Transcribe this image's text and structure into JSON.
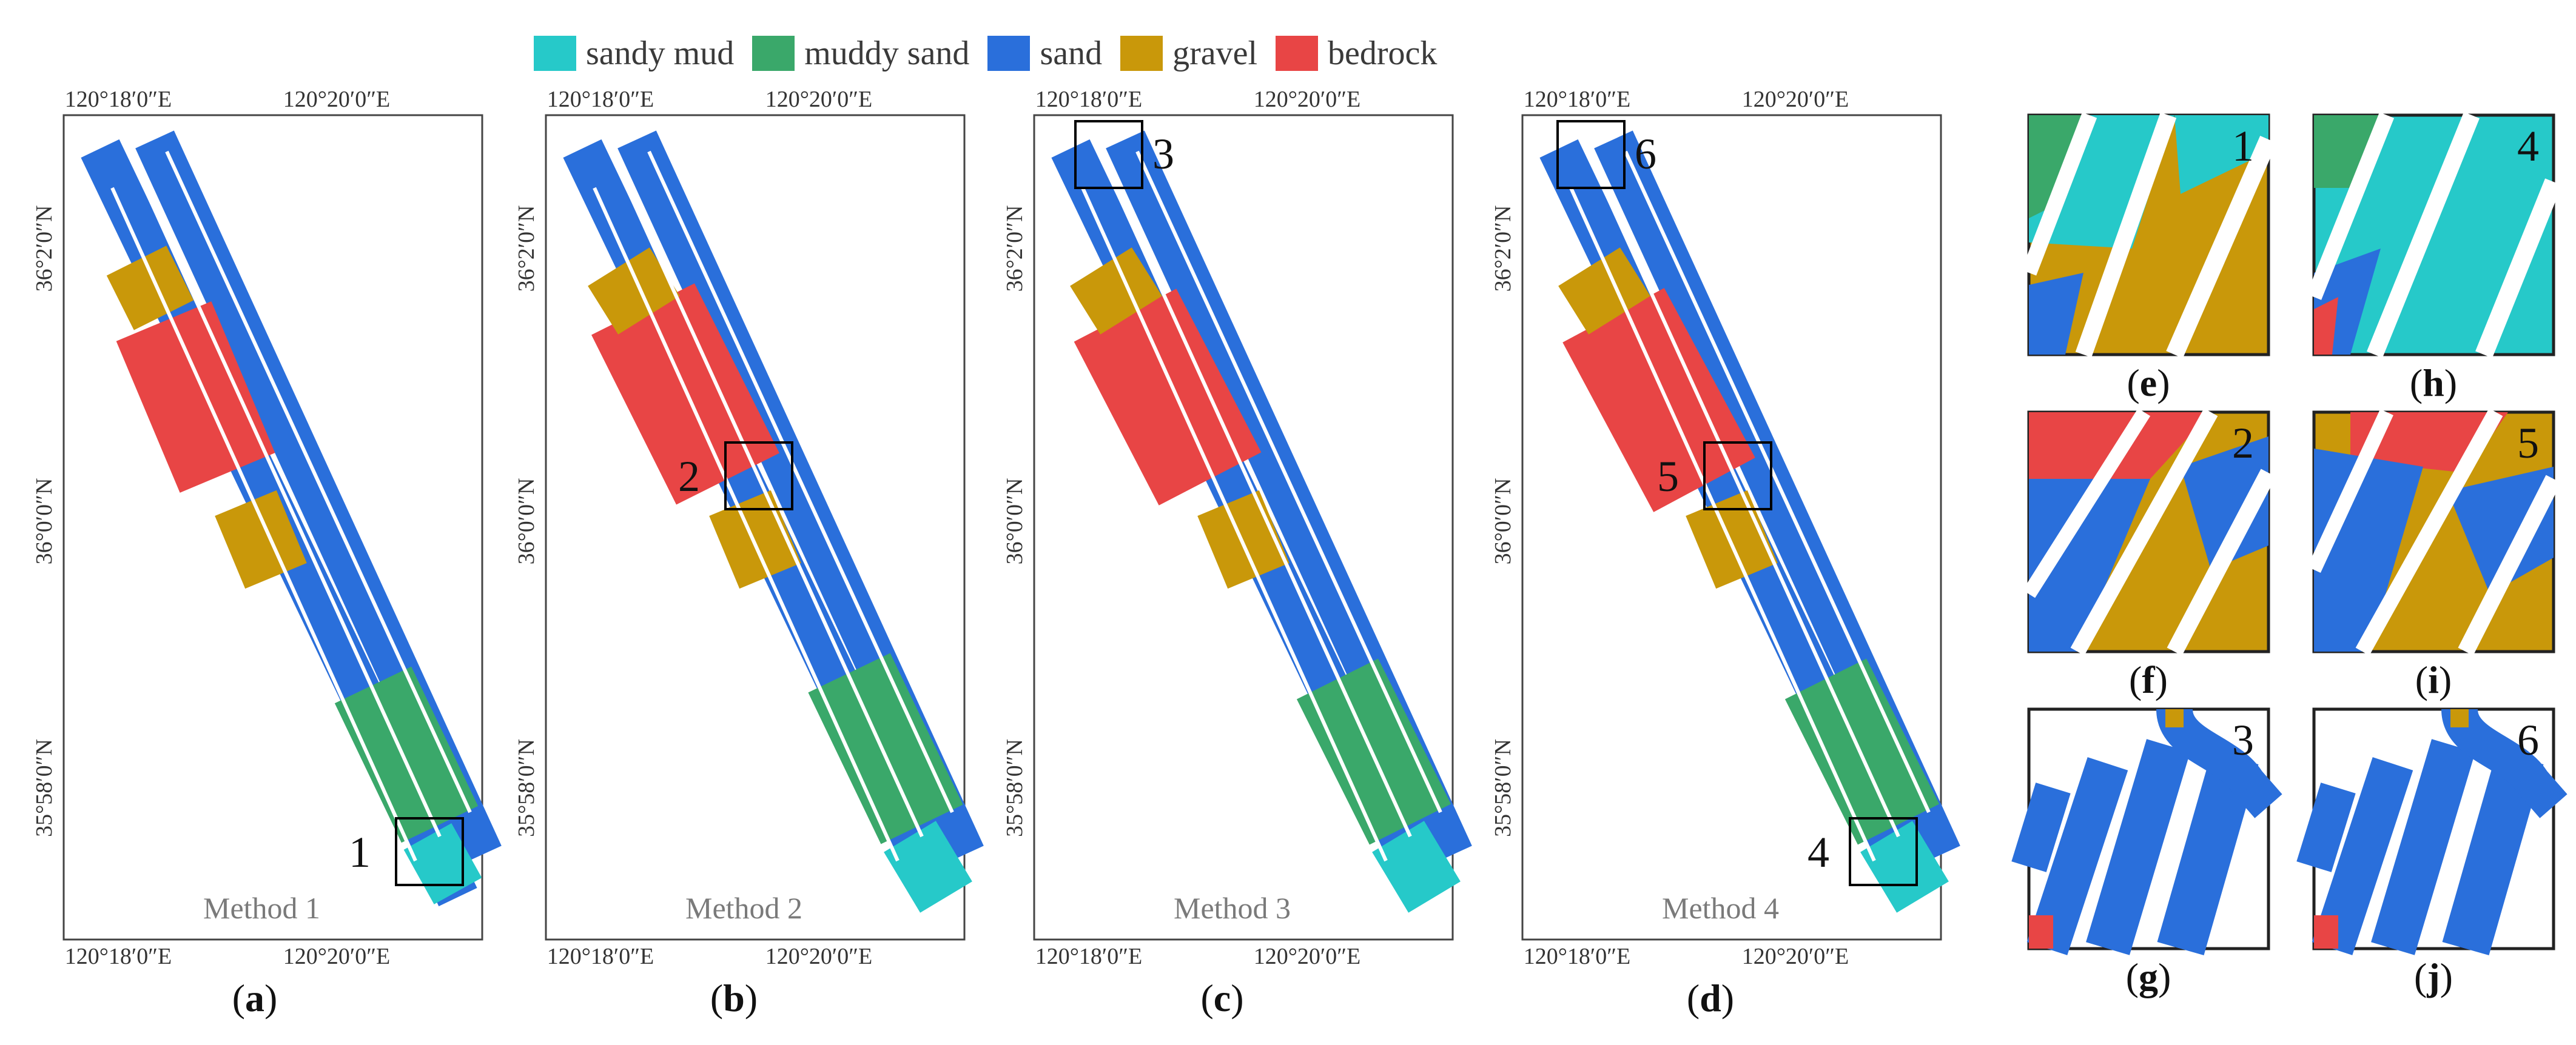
{
  "legend": {
    "items": [
      {
        "label": "sandy mud",
        "color": "#26c9c9"
      },
      {
        "label": "muddy sand",
        "color": "#3aa86a"
      },
      {
        "label": "sand",
        "color": "#2a6fdb"
      },
      {
        "label": "gravel",
        "color": "#c9980a"
      },
      {
        "label": "bedrock",
        "color": "#e84545"
      }
    ]
  },
  "axes": {
    "top_left": "120°18′0″E",
    "top_right": "120°20′0″E",
    "bottom_left": "120°18′0″E",
    "bottom_right": "120°20′0″E",
    "lat_top": "36°2′0″N",
    "lat_mid": "36°0′0″N",
    "lat_bottom": "35°58′0″N"
  },
  "maps": [
    {
      "letter": "a",
      "method": "Method 1",
      "box1": "1",
      "box2": ""
    },
    {
      "letter": "b",
      "method": "Method 2",
      "box1": "2",
      "box2": ""
    },
    {
      "letter": "c",
      "method": "Method 3",
      "box1": "3",
      "box2": ""
    },
    {
      "letter": "d",
      "method": "Method 4",
      "box1": "4",
      "box2": "5",
      "box3": "6"
    }
  ],
  "insets": [
    {
      "letter": "e",
      "num": "1"
    },
    {
      "letter": "h",
      "num": "4"
    },
    {
      "letter": "f",
      "num": "2"
    },
    {
      "letter": "i",
      "num": "5"
    },
    {
      "letter": "g",
      "num": "3"
    },
    {
      "letter": "j",
      "num": "6"
    }
  ]
}
